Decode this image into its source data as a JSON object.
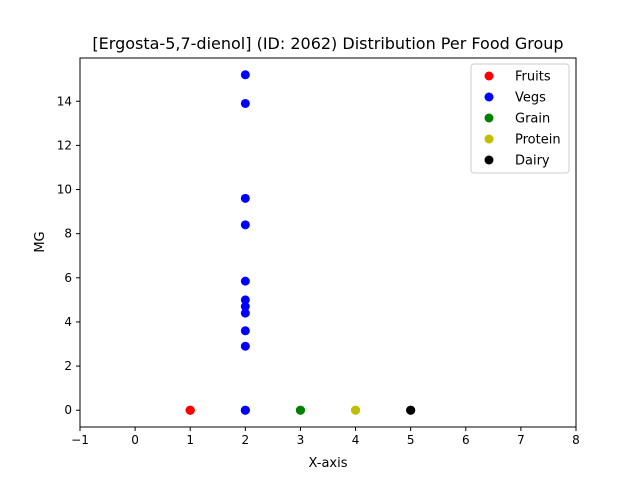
{
  "chart_data": {
    "type": "scatter",
    "title": "[Ergosta-5,7-dienol] (ID: 2062) Distribution Per Food Group",
    "xlabel": "X-axis",
    "ylabel": "MG",
    "xlim": [
      -1,
      8
    ],
    "ylim": [
      -0.76,
      15.96
    ],
    "xticks": [
      -1,
      0,
      1,
      2,
      3,
      4,
      5,
      6,
      7,
      8
    ],
    "yticks": [
      0,
      2,
      4,
      6,
      8,
      10,
      12,
      14
    ],
    "grid": false,
    "legend_position": "top-right",
    "series": [
      {
        "name": "Fruits",
        "color": "#ff0000",
        "x": [
          1,
          1,
          1,
          1
        ],
        "y": [
          0,
          0,
          0,
          0
        ]
      },
      {
        "name": "Vegs",
        "color": "#0000ff",
        "x": [
          2,
          2,
          2,
          2,
          2,
          2,
          2,
          2,
          2,
          2,
          2,
          2,
          2
        ],
        "y": [
          15.2,
          13.9,
          9.6,
          8.4,
          5.85,
          5.0,
          4.7,
          4.4,
          3.6,
          2.9,
          0,
          0,
          0
        ]
      },
      {
        "name": "Grain",
        "color": "#008000",
        "x": [
          3,
          3,
          3
        ],
        "y": [
          0,
          0,
          0
        ]
      },
      {
        "name": "Protein",
        "color": "#bfbf00",
        "x": [
          4,
          4,
          4
        ],
        "y": [
          0,
          0,
          0
        ]
      },
      {
        "name": "Dairy",
        "color": "#000000",
        "x": [
          5,
          5,
          5
        ],
        "y": [
          0,
          0,
          0
        ]
      }
    ]
  }
}
